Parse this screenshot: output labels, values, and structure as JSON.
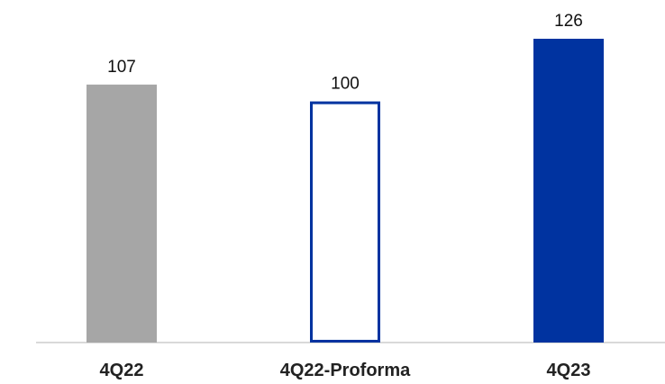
{
  "chart_data": {
    "type": "bar",
    "categories": [
      "4Q22",
      "4Q22-Proforma",
      "4Q23"
    ],
    "values": [
      107,
      100,
      126
    ],
    "data_labels": [
      "107",
      "100",
      "126"
    ],
    "ylim": [
      0,
      126
    ],
    "grid": false,
    "legend": "none",
    "bar_styles": [
      {
        "fill": "#a6a6a6",
        "stroke": "none"
      },
      {
        "fill": "#ffffff",
        "stroke": "#0033a0"
      },
      {
        "fill": "#0033a0",
        "stroke": "none"
      }
    ],
    "baseline_color": "#d9d9d9"
  }
}
